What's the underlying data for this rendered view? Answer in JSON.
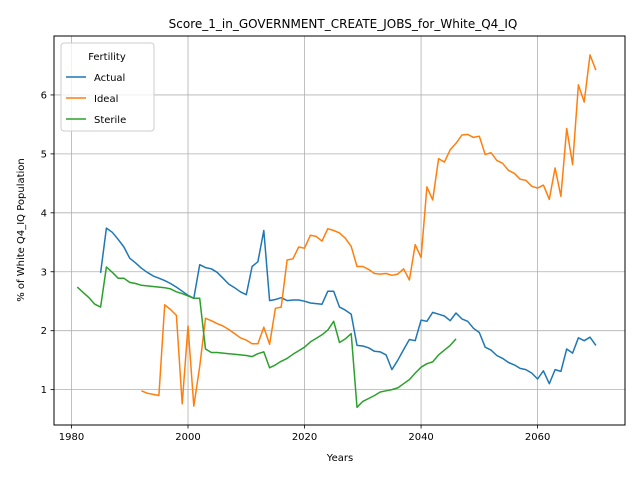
{
  "chart_data": {
    "type": "line",
    "title": "Score_1_in_GOVERNMENT_CREATE_JOBS_for_White_Q4_IQ",
    "xlabel": "Years",
    "ylabel": "% of White Q4_IQ Population",
    "xlim": [
      1977,
      2075
    ],
    "ylim": [
      0.4,
      7.0
    ],
    "xticks": [
      1980,
      2000,
      2020,
      2040,
      2060
    ],
    "yticks": [
      1,
      2,
      3,
      4,
      5,
      6
    ],
    "grid": true,
    "legend": {
      "title": "Fertility",
      "position": "top-left"
    },
    "series": [
      {
        "name": "Actual",
        "color": "#1f77b4",
        "points": [
          [
            1985,
            2.98
          ],
          [
            1986,
            3.74
          ],
          [
            1987,
            3.67
          ],
          [
            1988,
            3.55
          ],
          [
            1989,
            3.42
          ],
          [
            1990,
            3.23
          ],
          [
            1991,
            3.15
          ],
          [
            1992,
            3.06
          ],
          [
            1993,
            2.99
          ],
          [
            1994,
            2.93
          ],
          [
            1995,
            2.89
          ],
          [
            1996,
            2.85
          ],
          [
            1997,
            2.8
          ],
          [
            1998,
            2.74
          ],
          [
            1999,
            2.67
          ],
          [
            2000,
            2.6
          ],
          [
            2001,
            2.55
          ],
          [
            2002,
            3.12
          ],
          [
            2003,
            3.07
          ],
          [
            2004,
            3.05
          ],
          [
            2005,
            2.99
          ],
          [
            2006,
            2.89
          ],
          [
            2007,
            2.79
          ],
          [
            2008,
            2.73
          ],
          [
            2009,
            2.66
          ],
          [
            2010,
            2.61
          ],
          [
            2011,
            3.09
          ],
          [
            2012,
            3.17
          ],
          [
            2013,
            3.7
          ],
          [
            2014,
            2.51
          ],
          [
            2015,
            2.53
          ],
          [
            2016,
            2.56
          ],
          [
            2017,
            2.51
          ],
          [
            2018,
            2.52
          ],
          [
            2019,
            2.52
          ],
          [
            2020,
            2.5
          ],
          [
            2021,
            2.47
          ],
          [
            2022,
            2.46
          ],
          [
            2023,
            2.45
          ],
          [
            2024,
            2.67
          ],
          [
            2025,
            2.67
          ],
          [
            2026,
            2.4
          ],
          [
            2027,
            2.35
          ],
          [
            2028,
            2.28
          ],
          [
            2029,
            1.75
          ],
          [
            2030,
            1.74
          ],
          [
            2031,
            1.71
          ],
          [
            2032,
            1.65
          ],
          [
            2033,
            1.64
          ],
          [
            2034,
            1.59
          ],
          [
            2035,
            1.34
          ],
          [
            2036,
            1.5
          ],
          [
            2037,
            1.68
          ],
          [
            2038,
            1.85
          ],
          [
            2039,
            1.83
          ],
          [
            2040,
            2.18
          ],
          [
            2041,
            2.16
          ],
          [
            2042,
            2.31
          ],
          [
            2043,
            2.28
          ],
          [
            2044,
            2.25
          ],
          [
            2045,
            2.17
          ],
          [
            2046,
            2.3
          ],
          [
            2047,
            2.2
          ],
          [
            2048,
            2.16
          ],
          [
            2049,
            2.04
          ],
          [
            2050,
            1.97
          ],
          [
            2051,
            1.72
          ],
          [
            2052,
            1.67
          ],
          [
            2053,
            1.58
          ],
          [
            2054,
            1.53
          ],
          [
            2055,
            1.46
          ],
          [
            2056,
            1.42
          ],
          [
            2057,
            1.36
          ],
          [
            2058,
            1.34
          ],
          [
            2059,
            1.28
          ],
          [
            2060,
            1.18
          ],
          [
            2061,
            1.32
          ],
          [
            2062,
            1.1
          ],
          [
            2063,
            1.34
          ],
          [
            2064,
            1.31
          ],
          [
            2065,
            1.69
          ],
          [
            2066,
            1.62
          ],
          [
            2067,
            1.88
          ],
          [
            2068,
            1.83
          ],
          [
            2069,
            1.89
          ],
          [
            2070,
            1.75
          ]
        ]
      },
      {
        "name": "Ideal",
        "color": "#ff7f0e",
        "points": [
          [
            1992,
            0.98
          ],
          [
            1993,
            0.94
          ],
          [
            1994,
            0.92
          ],
          [
            1995,
            0.9
          ],
          [
            1996,
            2.44
          ],
          [
            1997,
            2.36
          ],
          [
            1998,
            2.26
          ],
          [
            1999,
            0.76
          ],
          [
            2000,
            2.08
          ],
          [
            2001,
            0.72
          ],
          [
            2002,
            1.39
          ],
          [
            2003,
            2.21
          ],
          [
            2004,
            2.17
          ],
          [
            2005,
            2.12
          ],
          [
            2006,
            2.08
          ],
          [
            2007,
            2.02
          ],
          [
            2008,
            1.95
          ],
          [
            2009,
            1.88
          ],
          [
            2010,
            1.84
          ],
          [
            2011,
            1.78
          ],
          [
            2012,
            1.78
          ],
          [
            2013,
            2.06
          ],
          [
            2014,
            1.77
          ],
          [
            2015,
            2.38
          ],
          [
            2016,
            2.4
          ],
          [
            2017,
            3.2
          ],
          [
            2018,
            3.22
          ],
          [
            2019,
            3.42
          ],
          [
            2020,
            3.4
          ],
          [
            2021,
            3.62
          ],
          [
            2022,
            3.6
          ],
          [
            2023,
            3.52
          ],
          [
            2024,
            3.73
          ],
          [
            2025,
            3.7
          ],
          [
            2026,
            3.66
          ],
          [
            2027,
            3.57
          ],
          [
            2028,
            3.43
          ],
          [
            2029,
            3.09
          ],
          [
            2030,
            3.09
          ],
          [
            2031,
            3.04
          ],
          [
            2032,
            2.97
          ],
          [
            2033,
            2.96
          ],
          [
            2034,
            2.97
          ],
          [
            2035,
            2.94
          ],
          [
            2036,
            2.96
          ],
          [
            2037,
            3.05
          ],
          [
            2038,
            2.86
          ],
          [
            2039,
            3.46
          ],
          [
            2040,
            3.24
          ],
          [
            2041,
            4.44
          ],
          [
            2042,
            4.22
          ],
          [
            2043,
            4.92
          ],
          [
            2044,
            4.86
          ],
          [
            2045,
            5.07
          ],
          [
            2046,
            5.18
          ],
          [
            2047,
            5.32
          ],
          [
            2048,
            5.33
          ],
          [
            2049,
            5.28
          ],
          [
            2050,
            5.3
          ],
          [
            2051,
            4.99
          ],
          [
            2052,
            5.02
          ],
          [
            2053,
            4.89
          ],
          [
            2054,
            4.84
          ],
          [
            2055,
            4.72
          ],
          [
            2056,
            4.67
          ],
          [
            2057,
            4.57
          ],
          [
            2058,
            4.55
          ],
          [
            2059,
            4.45
          ],
          [
            2060,
            4.42
          ],
          [
            2061,
            4.47
          ],
          [
            2062,
            4.23
          ],
          [
            2063,
            4.76
          ],
          [
            2064,
            4.28
          ],
          [
            2065,
            5.43
          ],
          [
            2066,
            4.82
          ],
          [
            2067,
            6.17
          ],
          [
            2068,
            5.88
          ],
          [
            2069,
            6.68
          ],
          [
            2070,
            6.42
          ]
        ]
      },
      {
        "name": "Sterile",
        "color": "#2ca02c",
        "points": [
          [
            1981,
            2.74
          ],
          [
            1982,
            2.65
          ],
          [
            1983,
            2.56
          ],
          [
            1984,
            2.45
          ],
          [
            1985,
            2.4
          ],
          [
            1986,
            3.08
          ],
          [
            1987,
            2.99
          ],
          [
            1988,
            2.89
          ],
          [
            1989,
            2.89
          ],
          [
            1990,
            2.82
          ],
          [
            1991,
            2.8
          ],
          [
            1992,
            2.77
          ],
          [
            1993,
            2.76
          ],
          [
            1994,
            2.75
          ],
          [
            1995,
            2.74
          ],
          [
            1996,
            2.73
          ],
          [
            1997,
            2.71
          ],
          [
            1998,
            2.66
          ],
          [
            1999,
            2.63
          ],
          [
            2000,
            2.59
          ],
          [
            2001,
            2.55
          ],
          [
            2002,
            2.55
          ],
          [
            2003,
            1.69
          ],
          [
            2004,
            1.63
          ],
          [
            2005,
            1.63
          ],
          [
            2006,
            1.62
          ],
          [
            2007,
            1.61
          ],
          [
            2008,
            1.6
          ],
          [
            2009,
            1.59
          ],
          [
            2010,
            1.58
          ],
          [
            2011,
            1.56
          ],
          [
            2012,
            1.61
          ],
          [
            2013,
            1.64
          ],
          [
            2014,
            1.37
          ],
          [
            2015,
            1.42
          ],
          [
            2016,
            1.48
          ],
          [
            2017,
            1.53
          ],
          [
            2018,
            1.6
          ],
          [
            2019,
            1.66
          ],
          [
            2020,
            1.72
          ],
          [
            2021,
            1.81
          ],
          [
            2022,
            1.87
          ],
          [
            2023,
            1.93
          ],
          [
            2024,
            2.01
          ],
          [
            2025,
            2.16
          ],
          [
            2026,
            1.8
          ],
          [
            2027,
            1.86
          ],
          [
            2028,
            1.95
          ],
          [
            2029,
            0.7
          ],
          [
            2030,
            0.8
          ],
          [
            2031,
            0.85
          ],
          [
            2032,
            0.9
          ],
          [
            2033,
            0.96
          ],
          [
            2034,
            0.98
          ],
          [
            2035,
            1.0
          ],
          [
            2036,
            1.03
          ],
          [
            2037,
            1.1
          ],
          [
            2038,
            1.17
          ],
          [
            2039,
            1.28
          ],
          [
            2040,
            1.38
          ],
          [
            2041,
            1.44
          ],
          [
            2042,
            1.47
          ],
          [
            2043,
            1.59
          ],
          [
            2044,
            1.67
          ],
          [
            2045,
            1.75
          ],
          [
            2046,
            1.86
          ]
        ]
      }
    ]
  }
}
